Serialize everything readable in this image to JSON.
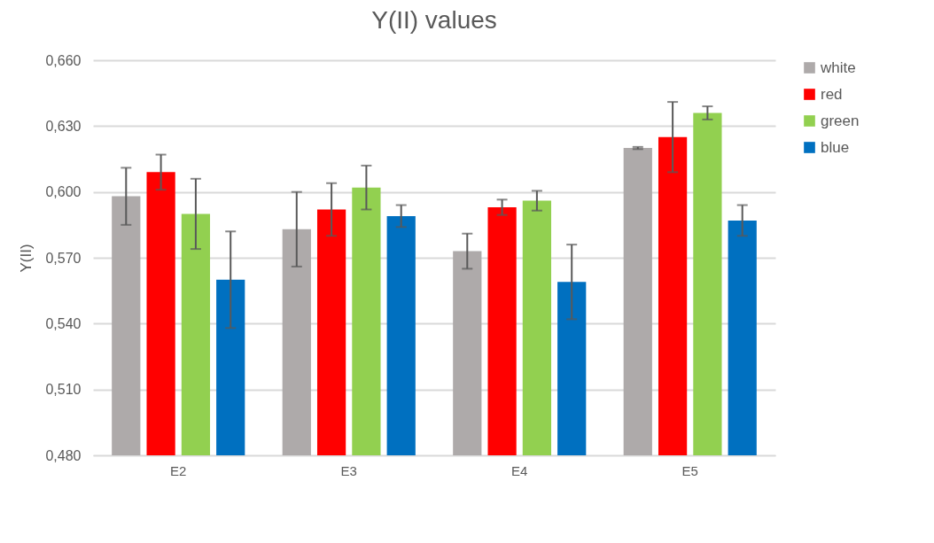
{
  "chart_data": {
    "type": "bar",
    "title": "Y(II) values",
    "ylabel": "Y(II)",
    "categories": [
      "E2",
      "E3",
      "E4",
      "E5"
    ],
    "series": [
      {
        "name": "white",
        "color": "#aeaaaa",
        "values": [
          0.598,
          0.583,
          0.573,
          0.62
        ],
        "errors": [
          0.013,
          0.017,
          0.008,
          0.0005
        ]
      },
      {
        "name": "red",
        "color": "#ff0000",
        "values": [
          0.609,
          0.592,
          0.593,
          0.625
        ],
        "errors": [
          0.008,
          0.012,
          0.0035,
          0.016
        ]
      },
      {
        "name": "green",
        "color": "#92d050",
        "values": [
          0.59,
          0.602,
          0.596,
          0.636
        ],
        "errors": [
          0.016,
          0.01,
          0.0045,
          0.003
        ]
      },
      {
        "name": "blue",
        "color": "#0070c0",
        "values": [
          0.56,
          0.589,
          0.559,
          0.587
        ],
        "errors": [
          0.022,
          0.005,
          0.017,
          0.007
        ]
      }
    ],
    "ylim": [
      0.48,
      0.66
    ],
    "yticks": [
      {
        "value": 0.48,
        "label": "0,480"
      },
      {
        "value": 0.51,
        "label": "0,510"
      },
      {
        "value": 0.54,
        "label": "0,540"
      },
      {
        "value": 0.57,
        "label": "0,570"
      },
      {
        "value": 0.6,
        "label": "0,600"
      },
      {
        "value": 0.63,
        "label": "0,630"
      },
      {
        "value": 0.66,
        "label": "0,660"
      }
    ],
    "grid": "y",
    "legend": "right"
  }
}
